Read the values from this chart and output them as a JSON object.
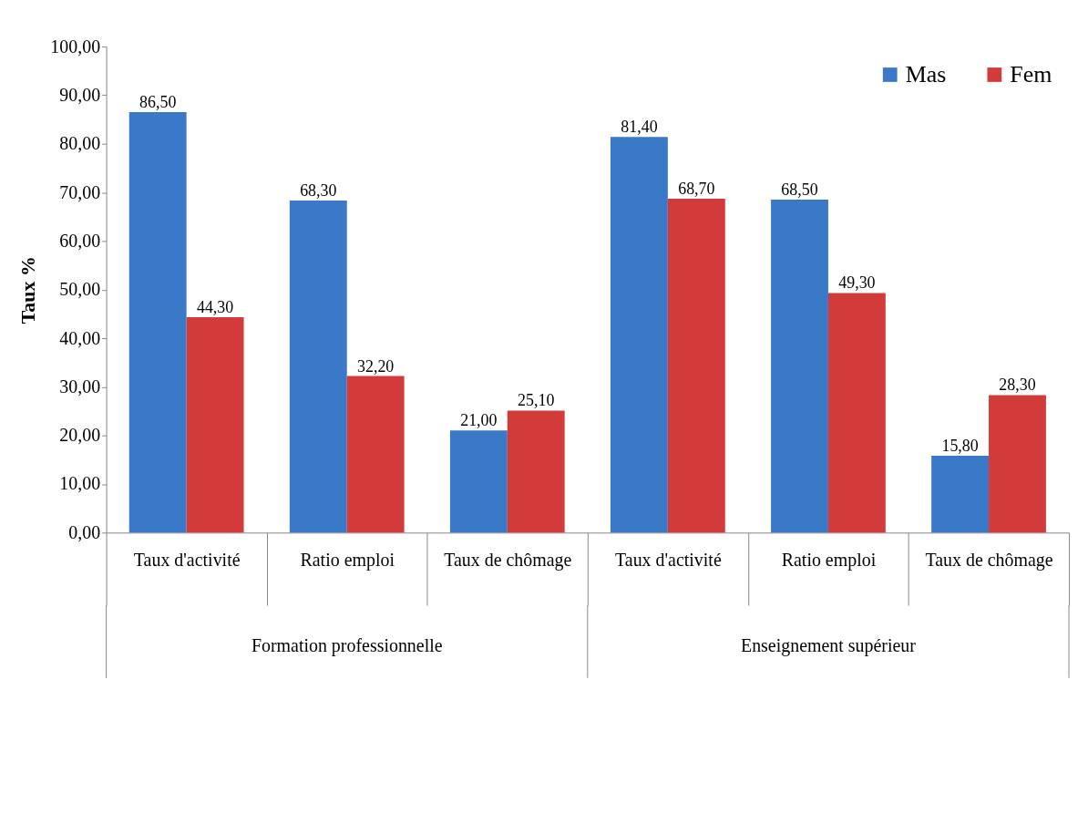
{
  "chart_data": {
    "type": "bar",
    "ylabel": "Taux %",
    "categories": [
      "Taux d'activité",
      "Ratio emploi",
      "Taux de chômage",
      "Taux d'activité",
      "Ratio emploi",
      "Taux de chômage"
    ],
    "series": [
      {
        "name": "Mas",
        "color": "#3a78c8",
        "values": [
          86.5,
          68.3,
          21.0,
          81.4,
          68.5,
          15.8
        ],
        "value_labels": [
          "86,50",
          "68,30",
          "21,00",
          "81,40",
          "68,50",
          "15,80"
        ]
      },
      {
        "name": "Fem",
        "color": "#d33b3b",
        "values": [
          44.3,
          32.2,
          25.1,
          68.7,
          49.3,
          28.3
        ],
        "value_labels": [
          "44,30",
          "32,20",
          "25,10",
          "68,70",
          "49,30",
          "28,30"
        ]
      }
    ],
    "annotations": [
      "Formation professionnelle",
      "Enseignement supérieur"
    ],
    "ylim": [
      0,
      100
    ],
    "yticks": [
      {
        "value": 0,
        "label": "0,00"
      },
      {
        "value": 10,
        "label": "10,00"
      },
      {
        "value": 20,
        "label": "20,00"
      },
      {
        "value": 30,
        "label": "30,00"
      },
      {
        "value": 40,
        "label": "40,00"
      },
      {
        "value": 50,
        "label": "50,00"
      },
      {
        "value": 60,
        "label": "60,00"
      },
      {
        "value": 70,
        "label": "70,00"
      },
      {
        "value": 80,
        "label": "80,00"
      },
      {
        "value": 90,
        "label": "90,00"
      },
      {
        "value": 100,
        "label": "100,00"
      }
    ],
    "grid": false,
    "legend": "top right"
  }
}
